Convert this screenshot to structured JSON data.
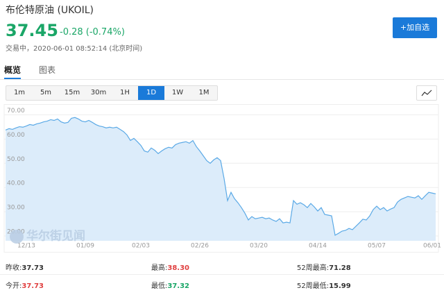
{
  "header": {
    "title": "布伦特原油 (UKOIL)",
    "price": "37.45",
    "change": "-0.28 (-0.74%)",
    "status": "交易中，2020-06-01 08:52:14 (北京时间)",
    "button": "+加自选"
  },
  "tabs": [
    "概览",
    "图表"
  ],
  "periods": [
    "1m",
    "5m",
    "15m",
    "30m",
    "1H",
    "1D",
    "1W",
    "1M"
  ],
  "watermark": "华尔街见闻",
  "chart_data": {
    "type": "area",
    "color": "#5aa9e6",
    "fill": "#dcecfa",
    "grid": true,
    "categories": [
      null,
      null,
      null,
      null,
      null,
      null,
      "12/13",
      null,
      null,
      null,
      null,
      null,
      null,
      null,
      null,
      null,
      null,
      null,
      null,
      null,
      null,
      null,
      null,
      "01/09",
      null,
      null,
      null,
      null,
      null,
      null,
      null,
      null,
      null,
      null,
      null,
      null,
      null,
      null,
      null,
      "02/03",
      null,
      null,
      null,
      null,
      null,
      null,
      null,
      null,
      null,
      null,
      null,
      null,
      null,
      null,
      null,
      null,
      "02/26",
      null,
      null,
      null,
      null,
      null,
      null,
      null,
      null,
      null,
      null,
      null,
      null,
      null,
      null,
      null,
      null,
      "03/20",
      null,
      null,
      null,
      null,
      null,
      null,
      null,
      null,
      null,
      null,
      null,
      null,
      null,
      null,
      null,
      null,
      "04/14",
      null,
      null,
      null,
      null,
      null,
      null,
      null,
      null,
      null,
      null,
      null,
      null,
      null,
      null,
      null,
      null,
      "05/07",
      null,
      null,
      null,
      null,
      null,
      null,
      null,
      null,
      null,
      null,
      null,
      null,
      null,
      null,
      null,
      "06/01",
      null
    ],
    "values": [
      63.7,
      64.3,
      64,
      64.6,
      65.1,
      64.9,
      65.4,
      66,
      65.7,
      66.3,
      66.6,
      67.1,
      67.4,
      68,
      67.7,
      68.3,
      67.1,
      66.6,
      66.9,
      68.6,
      68.9,
      68.3,
      67.4,
      67.1,
      67.7,
      66.9,
      66,
      65.4,
      65.1,
      64.6,
      64.9,
      64.6,
      64.9,
      64,
      63.1,
      61.7,
      59.4,
      60.3,
      58.9,
      57.4,
      55.1,
      54.6,
      56.3,
      55.4,
      54,
      55.1,
      56,
      56.6,
      56.3,
      57.7,
      58.3,
      58.6,
      58.9,
      58.3,
      59.4,
      56.9,
      55.1,
      53.1,
      51.1,
      50,
      51.4,
      52.3,
      51.1,
      43.7,
      34.6,
      38,
      35.4,
      33.7,
      31.7,
      29.4,
      26.6,
      28,
      27.1,
      27.4,
      27.7,
      27.1,
      27.4,
      26.6,
      26,
      27.1,
      25.4,
      25.7,
      25.4,
      34.6,
      33.1,
      33.7,
      32.9,
      31.7,
      33.4,
      32,
      30.3,
      31.7,
      28.9,
      28.6,
      28.3,
      20.3,
      21.1,
      22,
      22.3,
      23.1,
      22.6,
      24,
      25.4,
      26.9,
      26.6,
      28.3,
      30.9,
      32.3,
      30.9,
      31.7,
      30.3,
      31.1,
      31.7,
      34,
      35.1,
      35.7,
      36.3,
      36,
      35.7,
      36.6,
      35.1,
      36.6,
      38,
      37.7,
      37.4
    ],
    "ylim": [
      18,
      73
    ],
    "yticks": [
      {
        "value": 20,
        "label": "20.00"
      },
      {
        "value": 30,
        "label": "30.00"
      },
      {
        "value": 40,
        "label": "40.00"
      },
      {
        "value": 50,
        "label": "50.00"
      },
      {
        "value": 60,
        "label": "60.00"
      },
      {
        "value": 70,
        "label": "70.00"
      }
    ]
  },
  "stats": [
    {
      "label": "昨收:",
      "value": "37.73"
    },
    {
      "label": "最高:",
      "value": "38.30"
    },
    {
      "label": "52周最高:",
      "value": "71.28"
    },
    {
      "label": "今开:",
      "value": "37.73"
    },
    {
      "label": "最低:",
      "value": "37.32"
    },
    {
      "label": "52周最低:",
      "value": "15.99"
    }
  ]
}
